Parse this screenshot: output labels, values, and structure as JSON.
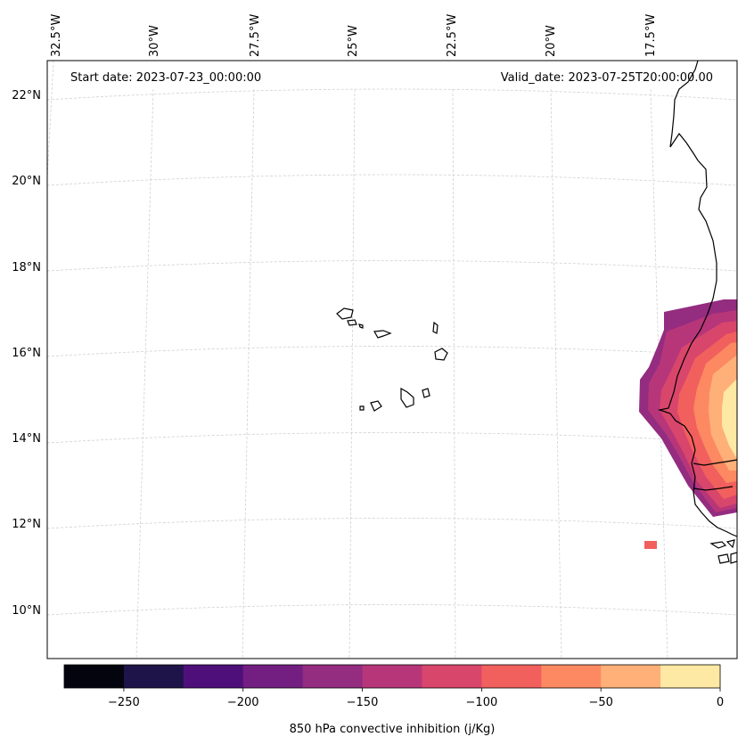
{
  "map": {
    "start_date": "Start date: 2023-07-23_00:00:00",
    "valid_date": "Valid_date: 2023-07-25T20:00:00.00",
    "lon_labels": [
      "32.5°W",
      "30°W",
      "27.5°W",
      "25°W",
      "22.5°W",
      "20°W",
      "17.5°W"
    ],
    "lat_labels": [
      "22°N",
      "20°N",
      "18°N",
      "16°N",
      "14°N",
      "12°N",
      "10°N"
    ],
    "gridlines": true
  },
  "colorbar": {
    "title": "850 hPa convective inhibition (j/Kg)",
    "tick_labels": [
      "−250",
      "−200",
      "−150",
      "−100",
      "−50",
      "0"
    ],
    "levels": [
      -275,
      -250,
      -225,
      -200,
      -175,
      -150,
      -125,
      -100,
      -75,
      -50,
      -25,
      0
    ],
    "colors": [
      "#04040f",
      "#1e1449",
      "#4f0f7b",
      "#721f81",
      "#942c80",
      "#b7367a",
      "#d9466b",
      "#f1605d",
      "#fc8961",
      "#feb078",
      "#fde8a4"
    ]
  }
}
